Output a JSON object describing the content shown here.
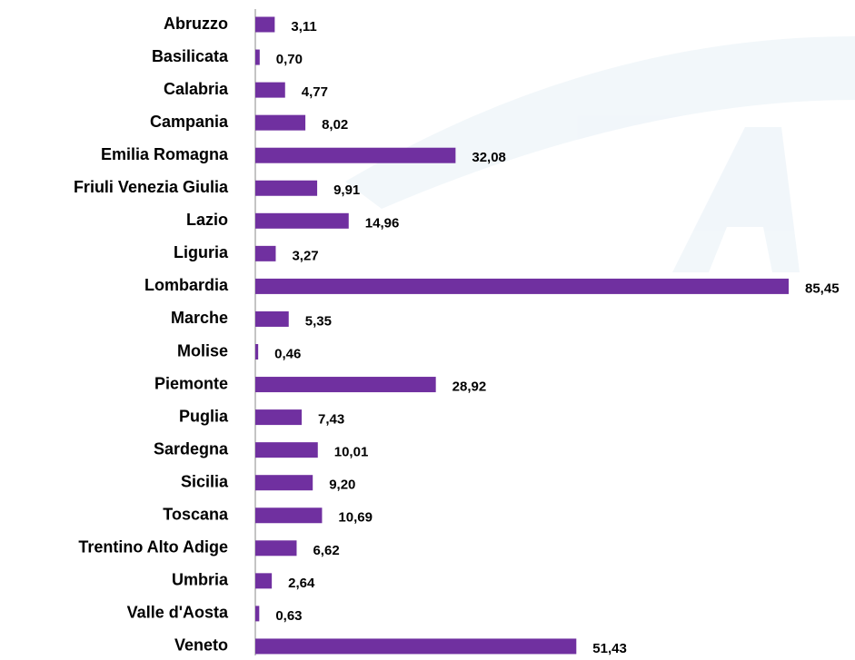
{
  "chart_data": {
    "type": "barh",
    "color": "#7030a0",
    "categories": [
      "Abruzzo",
      "Basilicata",
      "Calabria",
      "Campania",
      "Emilia Romagna",
      "Friuli Venezia Giulia",
      "Lazio",
      "Liguria",
      "Lombardia",
      "Marche",
      "Molise",
      "Piemonte",
      "Puglia",
      "Sardegna",
      "Sicilia",
      "Toscana",
      "Trentino Alto Adige",
      "Umbria",
      "Valle d'Aosta",
      "Veneto"
    ],
    "values": [
      3.11,
      0.7,
      4.77,
      8.02,
      32.08,
      9.91,
      14.96,
      3.27,
      85.45,
      5.35,
      0.46,
      28.92,
      7.43,
      10.01,
      9.2,
      10.69,
      6.62,
      2.64,
      0.63,
      51.43
    ],
    "value_labels": [
      "3,11",
      "0,70",
      "4,77",
      "8,02",
      "32,08",
      "9,91",
      "14,96",
      "3,27",
      "85,45",
      "5,35",
      "0,46",
      "28,92",
      "7,43",
      "10,01",
      "9,20",
      "10,69",
      "6,62",
      "2,64",
      "0,63",
      "51,43"
    ]
  }
}
